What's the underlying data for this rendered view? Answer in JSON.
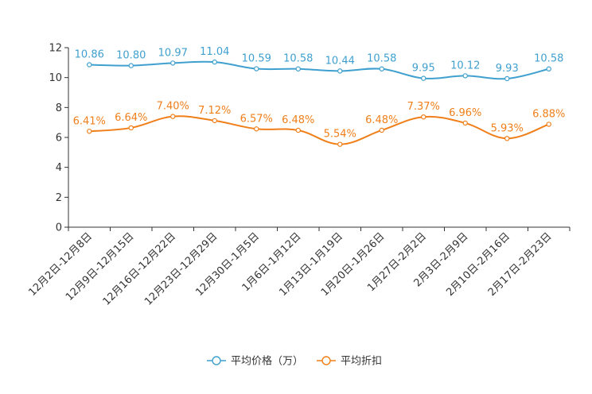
{
  "chart_data": {
    "type": "line",
    "title": "",
    "xlabel": "",
    "ylabel": "",
    "ylim": [
      0,
      12
    ],
    "yticks": [
      0,
      2,
      4,
      6,
      8,
      10,
      12
    ],
    "grid": false,
    "legend_position": "bottom-center",
    "categories": [
      "12月2日-12月8日",
      "12月9日-12月15日",
      "12月16日-12月22日",
      "12月23日-12月29日",
      "12月30日-1月5日",
      "1月6日-1月12日",
      "1月13日-1月19日",
      "1月20日-1月26日",
      "1月27日-2月2日",
      "2月3日-2月9日",
      "2月10日-2月16日",
      "2月17日-2月23日"
    ],
    "series": [
      {
        "name": "平均价格（万）",
        "color": "#3fa0cf",
        "values": [
          10.86,
          10.8,
          10.97,
          11.04,
          10.59,
          10.58,
          10.44,
          10.58,
          9.95,
          10.12,
          9.93,
          10.58
        ],
        "labels": [
          "10.86",
          "10.80",
          "10.97",
          "11.04",
          "10.59",
          "10.58",
          "10.44",
          "10.58",
          "9.95",
          "10.12",
          "9.93",
          "10.58"
        ]
      },
      {
        "name": "平均折扣",
        "color": "#f07f1a",
        "values": [
          6.41,
          6.64,
          7.4,
          7.12,
          6.57,
          6.48,
          5.54,
          6.48,
          7.37,
          6.96,
          5.93,
          6.88
        ],
        "labels": [
          "6.41%",
          "6.64%",
          "7.40%",
          "7.12%",
          "6.57%",
          "6.48%",
          "5.54%",
          "6.48%",
          "7.37%",
          "6.96%",
          "5.93%",
          "6.88%"
        ]
      }
    ]
  }
}
